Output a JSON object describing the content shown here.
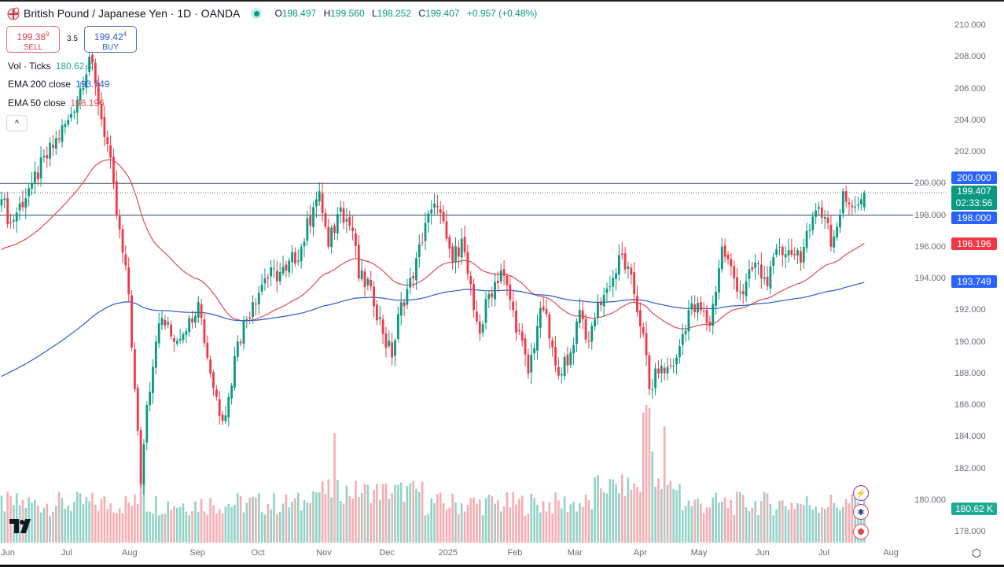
{
  "header": {
    "title": "British Pound / Japanese Yen · 1D · OANDA",
    "open_label": "O",
    "open": "198.497",
    "high_label": "H",
    "high": "199.560",
    "low_label": "L",
    "low": "198.252",
    "close_label": "C",
    "close": "199.407",
    "change": "+0.957 (+0.48%)"
  },
  "trade": {
    "sell_price": "199.38",
    "sell_sup": "9",
    "sell_label": "SELL",
    "spread": "3.5",
    "buy_price": "199.42",
    "buy_sup": "4",
    "buy_label": "BUY"
  },
  "legend": {
    "vol_label": "Vol · Ticks",
    "vol_value": "180.62 K",
    "ema200_label": "EMA 200 close",
    "ema200_value": "193.749",
    "ema50_label": "EMA 50 close",
    "ema50_value": "196.196",
    "collapse": "^"
  },
  "price_tags": {
    "level_high": "200.000",
    "last": "199.407",
    "countdown": "02:33:56",
    "level_low": "198.000",
    "ema50": "196.196",
    "ema200": "193.749",
    "volume": "180.62 K"
  },
  "colors": {
    "up": "#089981",
    "down": "#f23645",
    "vol_up": "#92d2c7",
    "vol_down": "#f5adb2",
    "ema50": "#e04a55",
    "ema200": "#2a5bd0",
    "levels": "#2f4a6b"
  },
  "chart_data": {
    "type": "candlestick",
    "title": "British Pound / Japanese Yen · 1D · OANDA",
    "ylim": [
      178,
      210
    ],
    "y_ticks": [
      "210.000",
      "208.000",
      "206.000",
      "204.000",
      "202.000",
      "200.000",
      "198.000",
      "196.000",
      "194.000",
      "192.000",
      "190.000",
      "188.000",
      "186.000",
      "184.000",
      "182.000",
      "180.000",
      "178.000"
    ],
    "x_ticks": [
      {
        "label": "Jun",
        "bar": 0
      },
      {
        "label": "Jul",
        "bar": 21.5
      },
      {
        "label": "Aug",
        "bar": 42.3
      },
      {
        "label": "Sep",
        "bar": 64.7
      },
      {
        "label": "Oct",
        "bar": 84.7
      },
      {
        "label": "Nov",
        "bar": 106.5
      },
      {
        "label": "Dec",
        "bar": 127.3
      },
      {
        "label": "2025",
        "bar": 147.5
      },
      {
        "label": "Feb",
        "bar": 169.6
      },
      {
        "label": "Mar",
        "bar": 189.4
      },
      {
        "label": "Apr",
        "bar": 211
      },
      {
        "label": "May",
        "bar": 230.4
      },
      {
        "label": "Jun",
        "bar": 251.4
      },
      {
        "label": "Jul",
        "bar": 271.7
      },
      {
        "label": "Aug",
        "bar": 293.8
      }
    ],
    "bar_count": 286,
    "close_anchors": [
      [
        0,
        199
      ],
      [
        3,
        197.5
      ],
      [
        10,
        200
      ],
      [
        22,
        204
      ],
      [
        26,
        206
      ],
      [
        29,
        208
      ],
      [
        32,
        205
      ],
      [
        35,
        202.5
      ],
      [
        38,
        198
      ],
      [
        42,
        193
      ],
      [
        44,
        187
      ],
      [
        46,
        181
      ],
      [
        48,
        186
      ],
      [
        51,
        190
      ],
      [
        53,
        191.5
      ],
      [
        57,
        190
      ],
      [
        62,
        191.5
      ],
      [
        65,
        192.5
      ],
      [
        69,
        188
      ],
      [
        73,
        185
      ],
      [
        75,
        186.5
      ],
      [
        78,
        190
      ],
      [
        83,
        192.5
      ],
      [
        87,
        194
      ],
      [
        94,
        194.5
      ],
      [
        99,
        196
      ],
      [
        103,
        198.5
      ],
      [
        105,
        199.5
      ],
      [
        108,
        196
      ],
      [
        112,
        198.5
      ],
      [
        116,
        197
      ],
      [
        118,
        194
      ],
      [
        122,
        193.5
      ],
      [
        126,
        190.5
      ],
      [
        129,
        189
      ],
      [
        132,
        192.5
      ],
      [
        136,
        194
      ],
      [
        140,
        197.5
      ],
      [
        144,
        198.5
      ],
      [
        147,
        196.5
      ],
      [
        149,
        195
      ],
      [
        152,
        196.5
      ],
      [
        156,
        192
      ],
      [
        158,
        190.5
      ],
      [
        161,
        193
      ],
      [
        165,
        194.5
      ],
      [
        169,
        192
      ],
      [
        174,
        188
      ],
      [
        177,
        191
      ],
      [
        179,
        192
      ],
      [
        183,
        188.5
      ],
      [
        187,
        188.5
      ],
      [
        191,
        192
      ],
      [
        194,
        190
      ],
      [
        197,
        192.5
      ],
      [
        201,
        193.5
      ],
      [
        205,
        195.5
      ],
      [
        209,
        193
      ],
      [
        212,
        190.5
      ],
      [
        214,
        187
      ],
      [
        217,
        188
      ],
      [
        219,
        188
      ],
      [
        223,
        189
      ],
      [
        227,
        192
      ],
      [
        231,
        192
      ],
      [
        234,
        191
      ],
      [
        238,
        196
      ],
      [
        242,
        194
      ],
      [
        245,
        193
      ],
      [
        249,
        195
      ],
      [
        253,
        193.5
      ],
      [
        257,
        196
      ],
      [
        261,
        195.5
      ],
      [
        264,
        195
      ],
      [
        266,
        197
      ],
      [
        270,
        198.5
      ],
      [
        273,
        197.5
      ],
      [
        274,
        196
      ],
      [
        277,
        198
      ],
      [
        278,
        199.5
      ],
      [
        281,
        198.5
      ],
      [
        285,
        199.407
      ]
    ],
    "last_candle": {
      "open": 198.497,
      "high": 199.56,
      "low": 198.252,
      "close": 199.407
    },
    "ema50_start": 195.8,
    "ema200_start": 187.8,
    "horizontal_levels": [
      200,
      198
    ],
    "volume_spikes": [
      [
        46,
        2.3
      ],
      [
        47,
        2.0
      ],
      [
        110,
        1.9
      ],
      [
        212,
        2.1
      ],
      [
        213,
        2.6
      ],
      [
        214,
        2.4
      ],
      [
        215,
        2.0
      ],
      [
        219,
        1.8
      ]
    ]
  }
}
